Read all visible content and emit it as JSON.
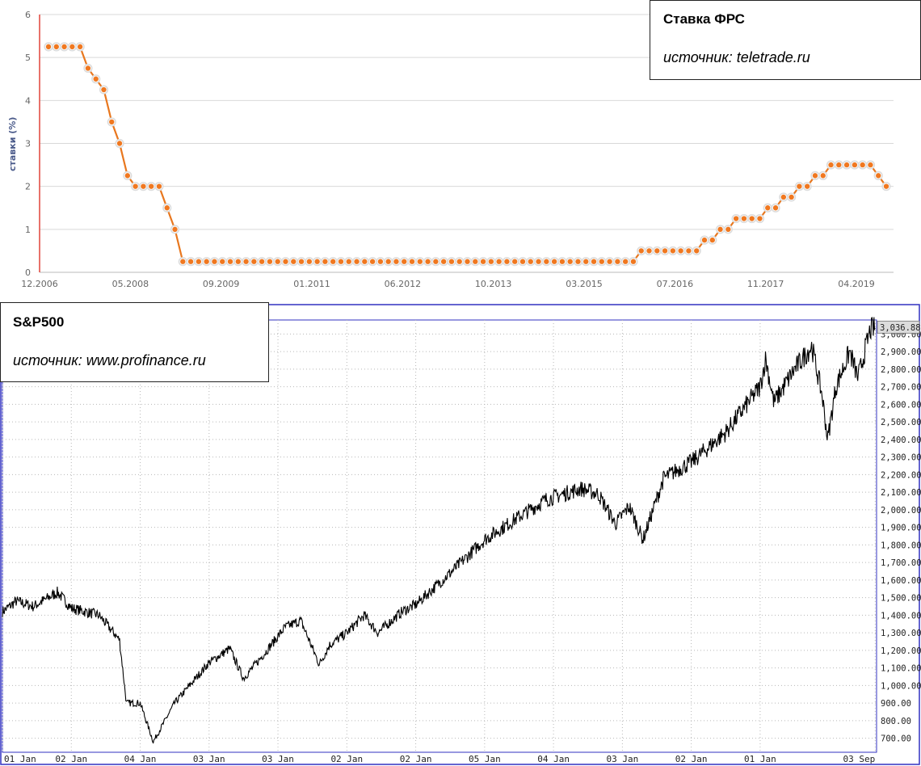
{
  "fed_caption": {
    "title": "Ставка ФРС",
    "source": "источник: teletrade.ru"
  },
  "spx_caption": {
    "title": "S&P500",
    "source": "источник: www.profinance.ru"
  },
  "colors": {
    "fed_line": "#e8771e",
    "fed_marker": "#f07820",
    "axis_red": "#e0443a",
    "spx_border": "#3030c0",
    "spx_line": "#000000"
  },
  "chart_data": [
    {
      "type": "line",
      "ylabel": "ставки (%)",
      "ylim": [
        0,
        6
      ],
      "yticks": [
        "0",
        "1",
        "2",
        "3",
        "4",
        "5",
        "6"
      ],
      "xticks": [
        "12.2006",
        "05.2008",
        "09.2009",
        "01.2011",
        "06.2012",
        "10.2013",
        "03.2015",
        "07.2016",
        "11.2017",
        "04.2019"
      ],
      "grid": true,
      "series": [
        {
          "values": [
            5.25,
            5.25,
            5.25,
            5.25,
            5.25,
            4.75,
            4.5,
            4.25,
            3.5,
            3.0,
            2.25,
            2.0,
            2.0,
            2.0,
            2.0,
            1.5,
            1.0,
            0.25,
            0.25,
            0.25,
            0.25,
            0.25,
            0.25,
            0.25,
            0.25,
            0.25,
            0.25,
            0.25,
            0.25,
            0.25,
            0.25,
            0.25,
            0.25,
            0.25,
            0.25,
            0.25,
            0.25,
            0.25,
            0.25,
            0.25,
            0.25,
            0.25,
            0.25,
            0.25,
            0.25,
            0.25,
            0.25,
            0.25,
            0.25,
            0.25,
            0.25,
            0.25,
            0.25,
            0.25,
            0.25,
            0.25,
            0.25,
            0.25,
            0.25,
            0.25,
            0.25,
            0.25,
            0.25,
            0.25,
            0.25,
            0.25,
            0.25,
            0.25,
            0.25,
            0.25,
            0.25,
            0.25,
            0.25,
            0.25,
            0.25,
            0.5,
            0.5,
            0.5,
            0.5,
            0.5,
            0.5,
            0.5,
            0.5,
            0.75,
            0.75,
            1.0,
            1.0,
            1.25,
            1.25,
            1.25,
            1.25,
            1.5,
            1.5,
            1.75,
            1.75,
            2.0,
            2.0,
            2.25,
            2.25,
            2.5,
            2.5,
            2.5,
            2.5,
            2.5,
            2.5,
            2.25,
            2.0
          ]
        }
      ]
    },
    {
      "type": "line",
      "ylim": [
        620,
        3080
      ],
      "yticks": [
        "700.00",
        "800.00",
        "900.00",
        "1,000.00",
        "1,100.00",
        "1,200.00",
        "1,300.00",
        "1,400.00",
        "1,500.00",
        "1,600.00",
        "1,700.00",
        "1,800.00",
        "1,900.00",
        "2,000.00",
        "2,100.00",
        "2,200.00",
        "2,300.00",
        "2,400.00",
        "2,500.00",
        "2,600.00",
        "2,700.00",
        "2,800.00",
        "2,900.00",
        "3,000.00"
      ],
      "last_value_label": "3,036.88",
      "xticks": [
        "01 Jan",
        "02 Jan",
        "04 Jan",
        "03 Jan",
        "03 Jan",
        "02 Jan",
        "02 Jan",
        "05 Jan",
        "04 Jan",
        "03 Jan",
        "02 Jan",
        "01 Jan",
        "03 Sep"
      ],
      "grid": true,
      "series": [
        {
          "x": [
            2007.0,
            2007.2,
            2007.45,
            2007.8,
            2008.0,
            2008.4,
            2008.7,
            2008.8,
            2008.9,
            2009.0,
            2009.19,
            2009.5,
            2010.0,
            2010.3,
            2010.5,
            2010.8,
            2011.1,
            2011.33,
            2011.6,
            2011.75,
            2012.0,
            2012.25,
            2012.45,
            2012.8,
            2013.0,
            2013.5,
            2014.0,
            2014.5,
            2014.9,
            2015.4,
            2015.65,
            2015.9,
            2016.1,
            2016.3,
            2016.6,
            2016.9,
            2017.0,
            2017.5,
            2018.0,
            2018.08,
            2018.2,
            2018.5,
            2018.75,
            2018.9,
            2018.98,
            2019.1,
            2019.3,
            2019.42,
            2019.6,
            2019.67
          ],
          "values": [
            1420,
            1480,
            1450,
            1530,
            1440,
            1400,
            1260,
            900,
            900,
            900,
            680,
            900,
            1130,
            1210,
            1040,
            1180,
            1330,
            1370,
            1120,
            1230,
            1300,
            1400,
            1300,
            1420,
            1460,
            1640,
            1830,
            1960,
            2060,
            2120,
            2090,
            1920,
            2020,
            1830,
            2180,
            2250,
            2270,
            2440,
            2700,
            2860,
            2610,
            2800,
            2930,
            2650,
            2400,
            2700,
            2900,
            2750,
            3025,
            3037
          ]
        }
      ]
    }
  ]
}
